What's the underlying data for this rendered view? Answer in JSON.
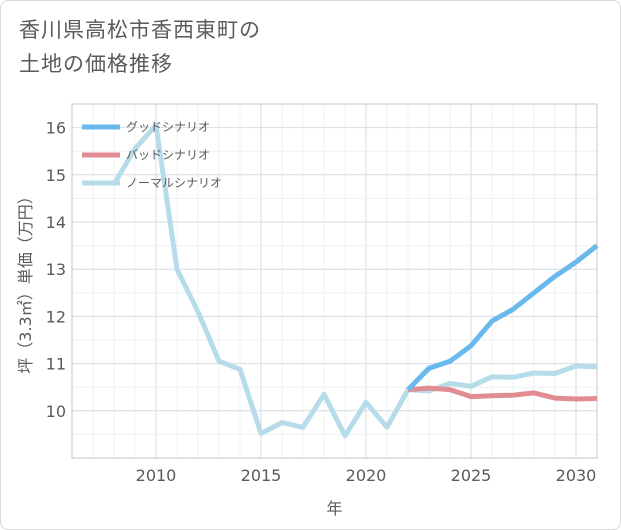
{
  "title": {
    "line1": "香川県高松市香西東町の",
    "line2": "土地の価格推移"
  },
  "chart_data": {
    "type": "line",
    "xlabel": "年",
    "ylabel": "坪（3.3㎡）単価（万円）",
    "xlim": [
      2006,
      2031
    ],
    "ylim": [
      9,
      16.5
    ],
    "xticks": [
      2010,
      2015,
      2020,
      2025,
      2030
    ],
    "yticks": [
      10,
      11,
      12,
      13,
      14,
      15,
      16
    ],
    "grid": true,
    "legend_position": "top-left",
    "series": [
      {
        "name": "グッドシナリオ",
        "color": "#6ab9ec",
        "x": [
          2022,
          2023,
          2024,
          2025,
          2026,
          2027,
          2028,
          2029,
          2030,
          2031
        ],
        "values": [
          10.45,
          10.9,
          11.05,
          11.38,
          11.9,
          12.15,
          12.5,
          12.85,
          13.15,
          13.5
        ]
      },
      {
        "name": "バッドシナリオ",
        "color": "#e08c92",
        "x": [
          2022,
          2023,
          2024,
          2025,
          2026,
          2027,
          2028,
          2029,
          2030,
          2031
        ],
        "values": [
          10.45,
          10.48,
          10.45,
          10.3,
          10.32,
          10.33,
          10.38,
          10.27,
          10.25,
          10.26
        ]
      },
      {
        "name": "ノーマルシナリオ",
        "color": "#b6dcea",
        "x": [
          2008,
          2009,
          2010,
          2011,
          2012,
          2013,
          2014,
          2015,
          2016,
          2017,
          2018,
          2019,
          2020,
          2021,
          2022,
          2023,
          2024,
          2025,
          2026,
          2027,
          2028,
          2029,
          2030,
          2031
        ],
        "values": [
          14.8,
          15.55,
          16.05,
          13.0,
          12.1,
          11.05,
          10.88,
          9.52,
          9.75,
          9.65,
          10.35,
          9.47,
          10.18,
          9.65,
          10.45,
          10.42,
          10.58,
          10.52,
          10.72,
          10.71,
          10.8,
          10.79,
          10.95,
          10.93
        ]
      }
    ]
  }
}
